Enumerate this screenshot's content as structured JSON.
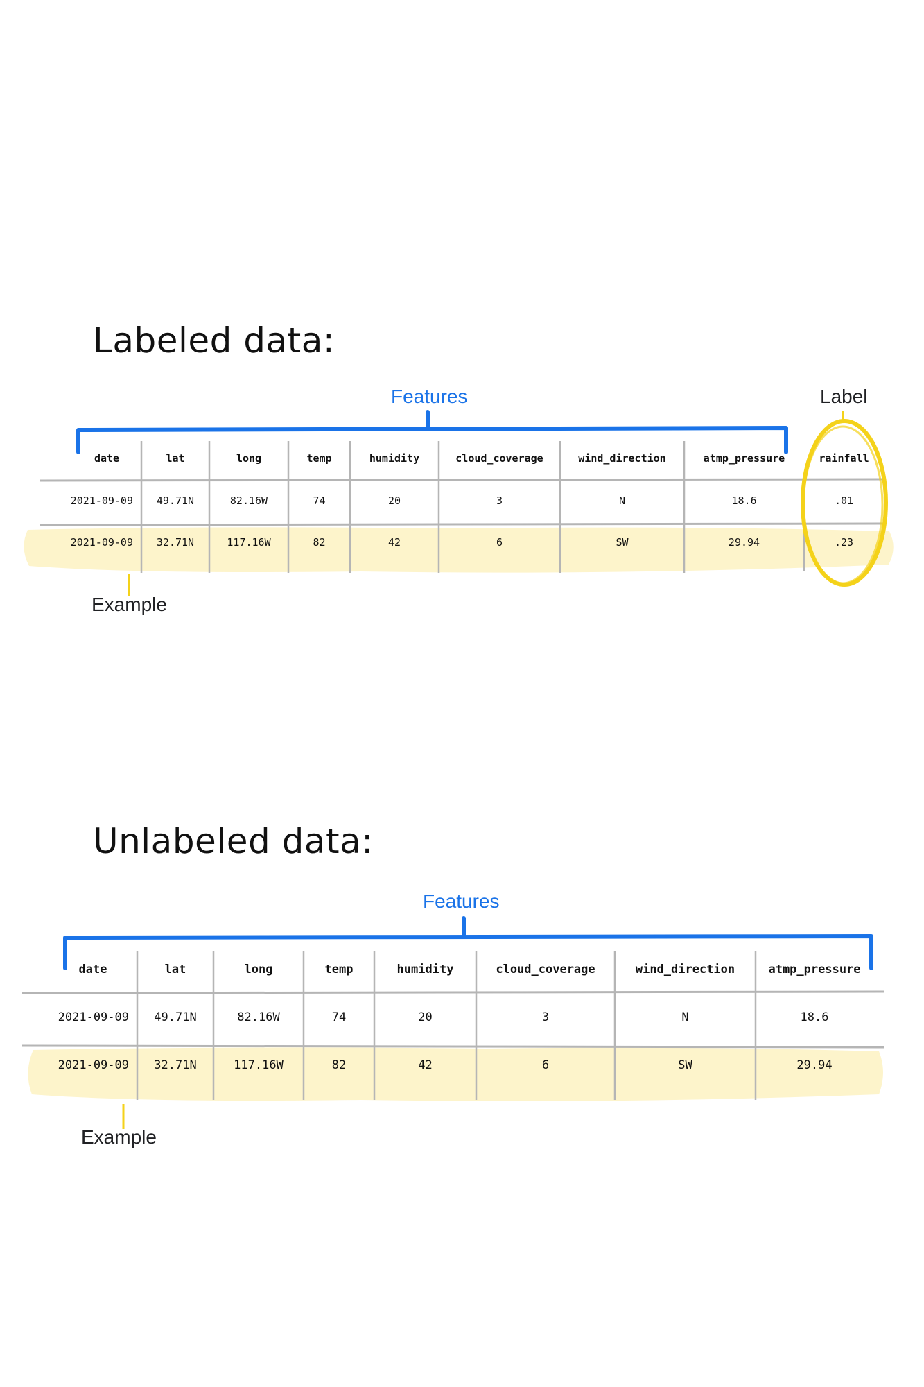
{
  "labeled": {
    "title": "Labeled data:",
    "features_annotation": "Features",
    "label_annotation": "Label",
    "example_annotation": "Example",
    "columns": [
      "date",
      "lat",
      "long",
      "temp",
      "humidity",
      "cloud_coverage",
      "wind_direction",
      "atmp_pressure",
      "rainfall"
    ],
    "rows": [
      [
        "2021-09-09",
        "49.71N",
        "82.16W",
        "74",
        "20",
        "3",
        "N",
        "18.6",
        ".01"
      ],
      [
        "2021-09-09",
        "32.71N",
        "117.16W",
        "82",
        "42",
        "6",
        "SW",
        "29.94",
        ".23"
      ]
    ],
    "highlighted_row": 1,
    "label_column": "rainfall"
  },
  "unlabeled": {
    "title": "Unlabeled data:",
    "features_annotation": "Features",
    "example_annotation": "Example",
    "columns": [
      "date",
      "lat",
      "long",
      "temp",
      "humidity",
      "cloud_coverage",
      "wind_direction",
      "atmp_pressure"
    ],
    "rows": [
      [
        "2021-09-09",
        "49.71N",
        "82.16W",
        "74",
        "20",
        "3",
        "N",
        "18.6"
      ],
      [
        "2021-09-09",
        "32.71N",
        "117.16W",
        "82",
        "42",
        "6",
        "SW",
        "29.94"
      ]
    ],
    "highlighted_row": 1
  },
  "colors": {
    "features_blue": "#1a73e8",
    "label_yellow": "#f4d21a",
    "row_highlight": "#fdf3c8",
    "grid_lines": "#b5b5b5",
    "text": "#111111"
  }
}
